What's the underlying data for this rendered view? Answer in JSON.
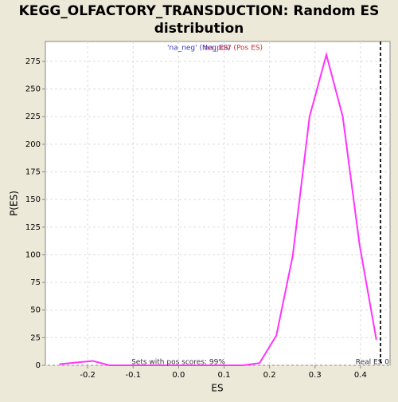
{
  "chart_data": {
    "type": "line",
    "title": "KEGG_OLFACTORY_TRANSDUCTION: Random ES",
    "subtitle": "distribution",
    "x_label": "ES",
    "y_label": "P(ES)",
    "legend": [
      {
        "label": "'na_neg' (Neg ES)",
        "color": "#3333cc"
      },
      {
        "label": "'na_pos' (Pos ES)",
        "color": "#cc3333"
      }
    ],
    "x": [
      -0.262,
      -0.225,
      -0.189,
      -0.152,
      -0.115,
      -0.079,
      -0.042,
      -0.005,
      0.031,
      0.068,
      0.105,
      0.141,
      0.178,
      0.215,
      0.251,
      0.288,
      0.325,
      0.361,
      0.398,
      0.435
    ],
    "series": [
      {
        "color": "#ff33ff",
        "values": [
          1,
          2.5,
          4,
          0,
          0,
          0,
          0,
          0,
          0,
          0,
          0,
          0,
          2,
          27,
          99,
          225,
          281,
          225,
          109,
          23
        ]
      }
    ],
    "xlim": [
      -0.293,
      0.465
    ],
    "ylim": [
      0,
      293
    ],
    "xticks": [
      -0.2,
      -0.1,
      {
        "value": 0,
        "label": "0.0"
      },
      0.1,
      0.2,
      0.3,
      0.4
    ],
    "yticks": [
      0,
      25,
      50,
      75,
      100,
      125,
      150,
      175,
      200,
      225,
      250,
      275
    ],
    "grid": true,
    "real_es": 0.444,
    "real_es_label": "Real ES 0",
    "annotation": "Sets with pos scores: 99%"
  }
}
